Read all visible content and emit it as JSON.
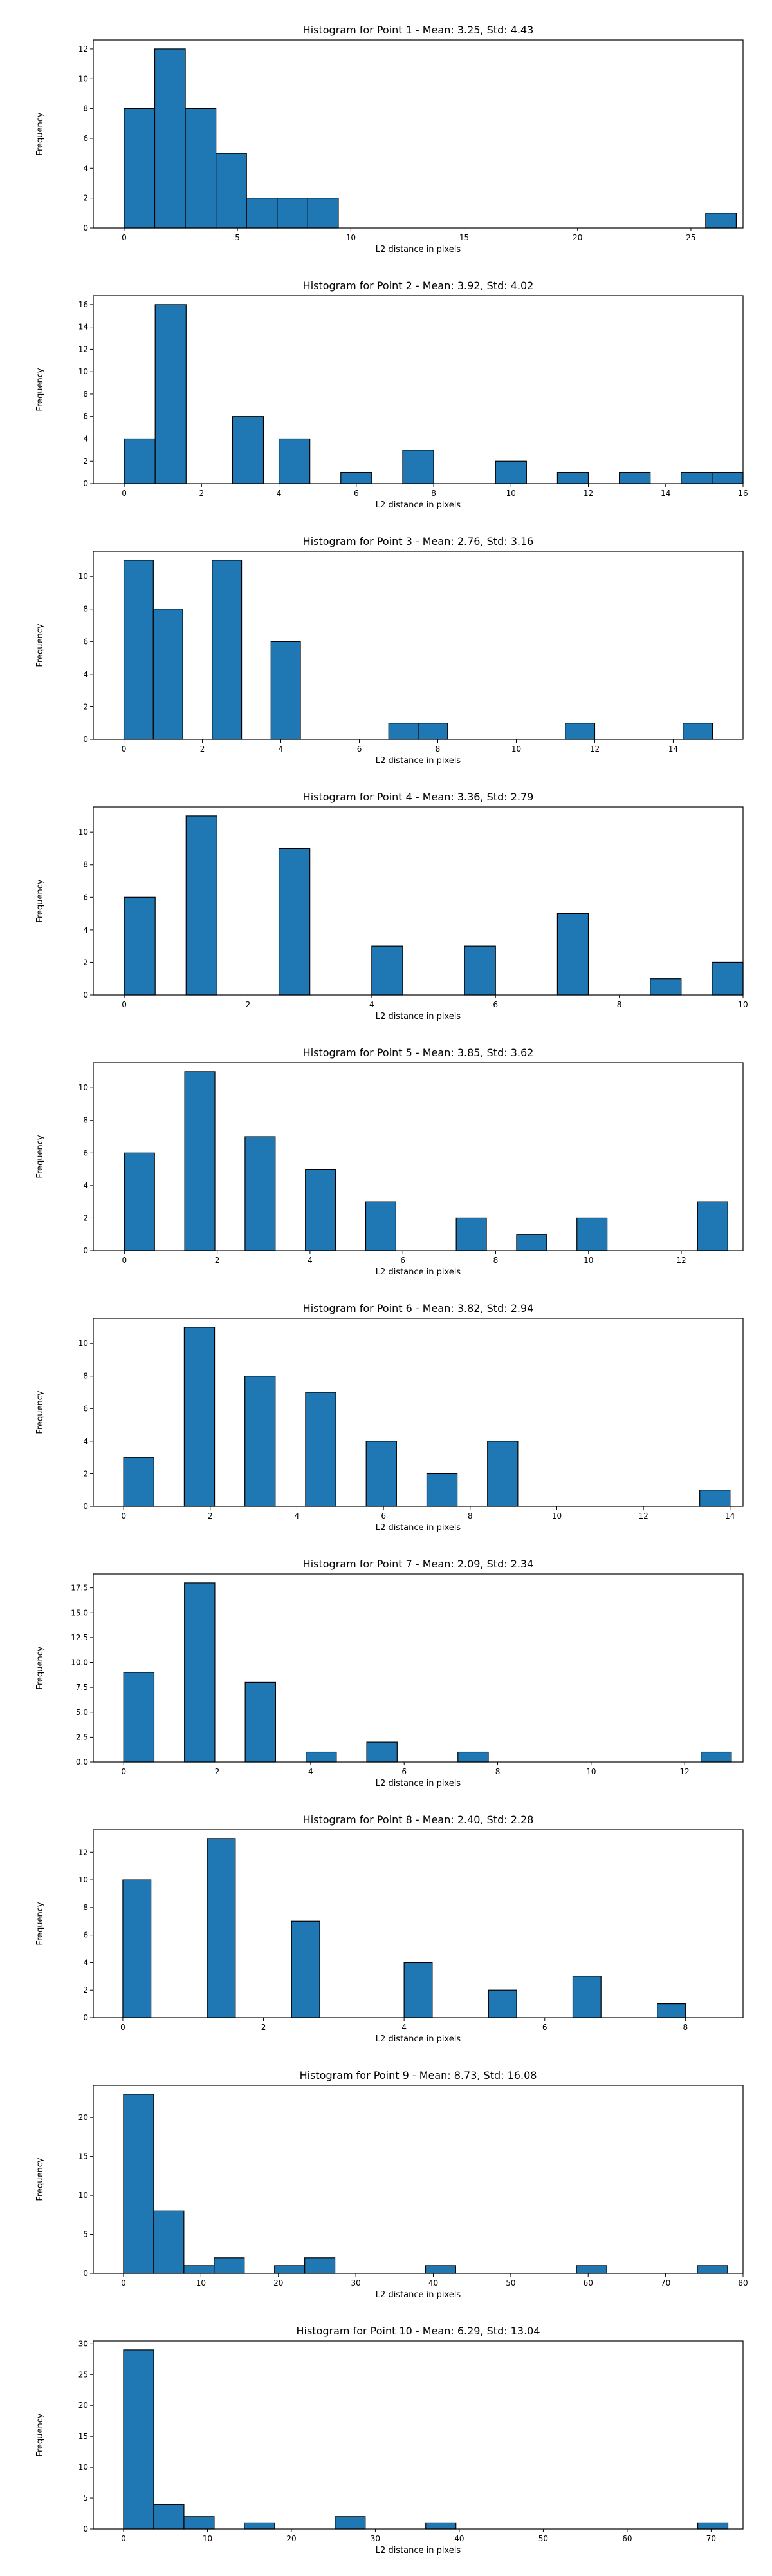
{
  "figure": {
    "colors": {
      "bar_fill": "#1f77b4",
      "bar_edge": "#000000"
    }
  },
  "chart_data": [
    {
      "type": "bar",
      "title": "Histogram for Point 1 - Mean: 3.25, Std: 4.43",
      "xlabel": "L2 distance in pixels",
      "ylabel": "Frequency",
      "xlim": [
        -1.36,
        27.3
      ],
      "ylim": [
        0,
        12.6
      ],
      "xticks": [
        0,
        5,
        10,
        15,
        20,
        25
      ],
      "xticklabels": [
        "0",
        "5",
        "10",
        "15",
        "20",
        "25"
      ],
      "yticks": [
        0,
        2,
        4,
        6,
        8,
        10,
        12
      ],
      "yticklabels": [
        "0",
        "2",
        "4",
        "6",
        "8",
        "10",
        "12"
      ],
      "bins": [
        {
          "start": 0,
          "end": 1.35,
          "count": 8
        },
        {
          "start": 1.35,
          "end": 2.7,
          "count": 12
        },
        {
          "start": 2.7,
          "end": 4.05,
          "count": 8
        },
        {
          "start": 4.05,
          "end": 5.4,
          "count": 5
        },
        {
          "start": 5.4,
          "end": 6.75,
          "count": 2
        },
        {
          "start": 6.75,
          "end": 8.1,
          "count": 2
        },
        {
          "start": 8.1,
          "end": 9.45,
          "count": 2
        },
        {
          "start": 25.65,
          "end": 27.0,
          "count": 1
        }
      ],
      "grid": false
    },
    {
      "type": "bar",
      "title": "Histogram for Point 2 - Mean: 3.92, Std: 4.02",
      "xlabel": "L2 distance in pixels",
      "ylabel": "Frequency",
      "xlim": [
        -0.8,
        16.0
      ],
      "ylim": [
        0,
        16.8
      ],
      "xticks": [
        0,
        2,
        4,
        6,
        8,
        10,
        12,
        14,
        16
      ],
      "xticklabels": [
        "0",
        "2",
        "4",
        "6",
        "8",
        "10",
        "12",
        "14",
        "16"
      ],
      "yticks": [
        0,
        2,
        4,
        6,
        8,
        10,
        12,
        14,
        16
      ],
      "yticklabels": [
        "0",
        "2",
        "4",
        "6",
        "8",
        "10",
        "12",
        "14",
        "16"
      ],
      "bins": [
        {
          "start": 0,
          "end": 0.8,
          "count": 4
        },
        {
          "start": 0.8,
          "end": 1.6,
          "count": 16
        },
        {
          "start": 2.8,
          "end": 3.6,
          "count": 6
        },
        {
          "start": 4.0,
          "end": 4.8,
          "count": 4
        },
        {
          "start": 5.6,
          "end": 6.4,
          "count": 1
        },
        {
          "start": 7.2,
          "end": 8.0,
          "count": 3
        },
        {
          "start": 9.6,
          "end": 10.4,
          "count": 2
        },
        {
          "start": 11.2,
          "end": 12.0,
          "count": 1
        },
        {
          "start": 12.8,
          "end": 13.6,
          "count": 1
        },
        {
          "start": 14.4,
          "end": 15.2,
          "count": 1
        },
        {
          "start": 15.2,
          "end": 16.0,
          "count": 1
        }
      ],
      "grid": false
    },
    {
      "type": "bar",
      "title": "Histogram for Point 3 - Mean: 2.76, Std: 3.16",
      "xlabel": "L2 distance in pixels",
      "ylabel": "Frequency",
      "xlim": [
        -0.78,
        15.78
      ],
      "ylim": [
        0,
        11.55
      ],
      "xticks": [
        0,
        2,
        4,
        6,
        8,
        10,
        12,
        14
      ],
      "xticklabels": [
        "0",
        "2",
        "4",
        "6",
        "8",
        "10",
        "12",
        "14"
      ],
      "yticks": [
        0,
        2,
        4,
        6,
        8,
        10
      ],
      "yticklabels": [
        "0",
        "2",
        "4",
        "6",
        "8",
        "10"
      ],
      "bins": [
        {
          "start": 0,
          "end": 0.75,
          "count": 11
        },
        {
          "start": 0.75,
          "end": 1.5,
          "count": 8
        },
        {
          "start": 2.25,
          "end": 3.0,
          "count": 11
        },
        {
          "start": 3.75,
          "end": 4.5,
          "count": 6
        },
        {
          "start": 6.75,
          "end": 7.5,
          "count": 1
        },
        {
          "start": 7.5,
          "end": 8.25,
          "count": 1
        },
        {
          "start": 11.25,
          "end": 12.0,
          "count": 1
        },
        {
          "start": 14.25,
          "end": 15.0,
          "count": 1
        }
      ],
      "grid": false
    },
    {
      "type": "bar",
      "title": "Histogram for Point 4 - Mean: 3.36, Std: 2.79",
      "xlabel": "L2 distance in pixels",
      "ylabel": "Frequency",
      "xlim": [
        -0.5,
        10.0
      ],
      "ylim": [
        0,
        11.55
      ],
      "xticks": [
        0,
        2,
        4,
        6,
        8,
        10
      ],
      "xticklabels": [
        "0",
        "2",
        "4",
        "6",
        "8",
        "10"
      ],
      "yticks": [
        0,
        2,
        4,
        6,
        8,
        10
      ],
      "yticklabels": [
        "0",
        "2",
        "4",
        "6",
        "8",
        "10"
      ],
      "bins": [
        {
          "start": 0,
          "end": 0.5,
          "count": 6
        },
        {
          "start": 1.0,
          "end": 1.5,
          "count": 11
        },
        {
          "start": 2.5,
          "end": 3.0,
          "count": 9
        },
        {
          "start": 4.0,
          "end": 4.5,
          "count": 3
        },
        {
          "start": 5.5,
          "end": 6.0,
          "count": 3
        },
        {
          "start": 7.0,
          "end": 7.5,
          "count": 5
        },
        {
          "start": 8.5,
          "end": 9.0,
          "count": 1
        },
        {
          "start": 9.5,
          "end": 10.0,
          "count": 2
        }
      ],
      "grid": false
    },
    {
      "type": "bar",
      "title": "Histogram for Point 5 - Mean: 3.85, Std: 3.62",
      "xlabel": "L2 distance in pixels",
      "ylabel": "Frequency",
      "xlim": [
        -0.67,
        13.33
      ],
      "ylim": [
        0,
        11.55
      ],
      "xticks": [
        0,
        2,
        4,
        6,
        8,
        10,
        12
      ],
      "xticklabels": [
        "0",
        "2",
        "4",
        "6",
        "8",
        "10",
        "12"
      ],
      "yticks": [
        0,
        2,
        4,
        6,
        8,
        10
      ],
      "yticklabels": [
        "0",
        "2",
        "4",
        "6",
        "8",
        "10"
      ],
      "bins": [
        {
          "start": 0,
          "end": 0.65,
          "count": 6
        },
        {
          "start": 1.3,
          "end": 1.95,
          "count": 11
        },
        {
          "start": 2.6,
          "end": 3.25,
          "count": 7
        },
        {
          "start": 3.9,
          "end": 4.55,
          "count": 5
        },
        {
          "start": 5.2,
          "end": 5.85,
          "count": 3
        },
        {
          "start": 7.15,
          "end": 7.8,
          "count": 2
        },
        {
          "start": 8.45,
          "end": 9.1,
          "count": 1
        },
        {
          "start": 9.75,
          "end": 10.4,
          "count": 2
        },
        {
          "start": 12.35,
          "end": 13.0,
          "count": 3
        }
      ],
      "grid": false
    },
    {
      "type": "bar",
      "title": "Histogram for Point 6 - Mean: 3.82, Std: 2.94",
      "xlabel": "L2 distance in pixels",
      "ylabel": "Frequency",
      "xlim": [
        -0.7,
        14.3
      ],
      "ylim": [
        0,
        11.55
      ],
      "xticks": [
        0,
        2,
        4,
        6,
        8,
        10,
        12,
        14
      ],
      "xticklabels": [
        "0",
        "2",
        "4",
        "6",
        "8",
        "10",
        "12",
        "14"
      ],
      "yticks": [
        0,
        2,
        4,
        6,
        8,
        10
      ],
      "yticklabels": [
        "0",
        "2",
        "4",
        "6",
        "8",
        "10"
      ],
      "bins": [
        {
          "start": 0,
          "end": 0.7,
          "count": 3
        },
        {
          "start": 1.4,
          "end": 2.1,
          "count": 11
        },
        {
          "start": 2.8,
          "end": 3.5,
          "count": 8
        },
        {
          "start": 4.2,
          "end": 4.9,
          "count": 7
        },
        {
          "start": 5.6,
          "end": 6.3,
          "count": 4
        },
        {
          "start": 7.0,
          "end": 7.7,
          "count": 2
        },
        {
          "start": 8.4,
          "end": 9.1,
          "count": 4
        },
        {
          "start": 13.3,
          "end": 14.0,
          "count": 1
        }
      ],
      "grid": false
    },
    {
      "type": "bar",
      "title": "Histogram for Point 7 - Mean: 2.09, Std: 2.34",
      "xlabel": "L2 distance in pixels",
      "ylabel": "Frequency",
      "xlim": [
        -0.65,
        13.25
      ],
      "ylim": [
        0,
        18.9
      ],
      "xticks": [
        0,
        2,
        4,
        6,
        8,
        10,
        12
      ],
      "xticklabels": [
        "0",
        "2",
        "4",
        "6",
        "8",
        "10",
        "12"
      ],
      "yticks": [
        0,
        2.5,
        5,
        7.5,
        10,
        12.5,
        15,
        17.5
      ],
      "yticklabels": [
        "0.0",
        "2.5",
        "5.0",
        "7.5",
        "10.0",
        "12.5",
        "15.0",
        "17.5"
      ],
      "bins": [
        {
          "start": 0,
          "end": 0.65,
          "count": 9
        },
        {
          "start": 1.3,
          "end": 1.95,
          "count": 18
        },
        {
          "start": 2.6,
          "end": 3.25,
          "count": 8
        },
        {
          "start": 3.9,
          "end": 4.55,
          "count": 1
        },
        {
          "start": 5.2,
          "end": 5.85,
          "count": 2
        },
        {
          "start": 7.15,
          "end": 7.8,
          "count": 1
        },
        {
          "start": 12.35,
          "end": 13.0,
          "count": 1
        }
      ],
      "grid": false
    },
    {
      "type": "bar",
      "title": "Histogram for Point 8 - Mean: 2.40, Std: 2.28",
      "xlabel": "L2 distance in pixels",
      "ylabel": "Frequency",
      "xlim": [
        -0.42,
        8.82
      ],
      "ylim": [
        0,
        13.65
      ],
      "xticks": [
        0,
        2,
        4,
        6,
        8
      ],
      "xticklabels": [
        "0",
        "2",
        "4",
        "6",
        "8"
      ],
      "yticks": [
        0,
        2,
        4,
        6,
        8,
        10,
        12
      ],
      "yticklabels": [
        "0",
        "2",
        "4",
        "6",
        "8",
        "10",
        "12"
      ],
      "bins": [
        {
          "start": 0,
          "end": 0.4,
          "count": 10
        },
        {
          "start": 1.2,
          "end": 1.6,
          "count": 13
        },
        {
          "start": 2.4,
          "end": 2.8,
          "count": 7
        },
        {
          "start": 4.0,
          "end": 4.4,
          "count": 4
        },
        {
          "start": 5.2,
          "end": 5.6,
          "count": 2
        },
        {
          "start": 6.4,
          "end": 6.8,
          "count": 3
        },
        {
          "start": 7.6,
          "end": 8.0,
          "count": 1
        }
      ],
      "grid": false
    },
    {
      "type": "bar",
      "title": "Histogram for Point 9 - Mean: 8.73, Std: 16.08",
      "xlabel": "L2 distance in pixels",
      "ylabel": "Frequency",
      "xlim": [
        -3.9,
        80.0
      ],
      "ylim": [
        0,
        24.15
      ],
      "xticks": [
        0,
        10,
        20,
        30,
        40,
        50,
        60,
        70,
        80
      ],
      "xticklabels": [
        "0",
        "10",
        "20",
        "30",
        "40",
        "50",
        "60",
        "70",
        "80"
      ],
      "yticks": [
        0,
        5,
        10,
        15,
        20
      ],
      "yticklabels": [
        "0",
        "5",
        "10",
        "15",
        "20"
      ],
      "bins": [
        {
          "start": 0,
          "end": 3.9,
          "count": 23
        },
        {
          "start": 3.9,
          "end": 7.8,
          "count": 8
        },
        {
          "start": 7.8,
          "end": 11.7,
          "count": 1
        },
        {
          "start": 11.7,
          "end": 15.6,
          "count": 2
        },
        {
          "start": 19.5,
          "end": 23.4,
          "count": 1
        },
        {
          "start": 23.4,
          "end": 27.3,
          "count": 2
        },
        {
          "start": 39.0,
          "end": 42.9,
          "count": 1
        },
        {
          "start": 58.5,
          "end": 62.4,
          "count": 1
        },
        {
          "start": 74.1,
          "end": 78.0,
          "count": 1
        }
      ],
      "grid": false
    },
    {
      "type": "bar",
      "title": "Histogram for Point 10 - Mean: 6.29, Std: 13.04",
      "xlabel": "L2 distance in pixels",
      "ylabel": "Frequency",
      "xlim": [
        -3.6,
        73.8
      ],
      "ylim": [
        0,
        30.45
      ],
      "xticks": [
        0,
        10,
        20,
        30,
        40,
        50,
        60,
        70
      ],
      "xticklabels": [
        "0",
        "10",
        "20",
        "30",
        "40",
        "50",
        "60",
        "70"
      ],
      "yticks": [
        0,
        5,
        10,
        15,
        20,
        25,
        30
      ],
      "yticklabels": [
        "0",
        "5",
        "10",
        "15",
        "20",
        "25",
        "30"
      ],
      "bins": [
        {
          "start": 0,
          "end": 3.6,
          "count": 29
        },
        {
          "start": 3.6,
          "end": 7.2,
          "count": 4
        },
        {
          "start": 7.2,
          "end": 10.8,
          "count": 2
        },
        {
          "start": 14.4,
          "end": 18.0,
          "count": 1
        },
        {
          "start": 25.2,
          "end": 28.8,
          "count": 2
        },
        {
          "start": 36.0,
          "end": 39.6,
          "count": 1
        },
        {
          "start": 68.4,
          "end": 72.0,
          "count": 1
        }
      ],
      "grid": false
    }
  ]
}
